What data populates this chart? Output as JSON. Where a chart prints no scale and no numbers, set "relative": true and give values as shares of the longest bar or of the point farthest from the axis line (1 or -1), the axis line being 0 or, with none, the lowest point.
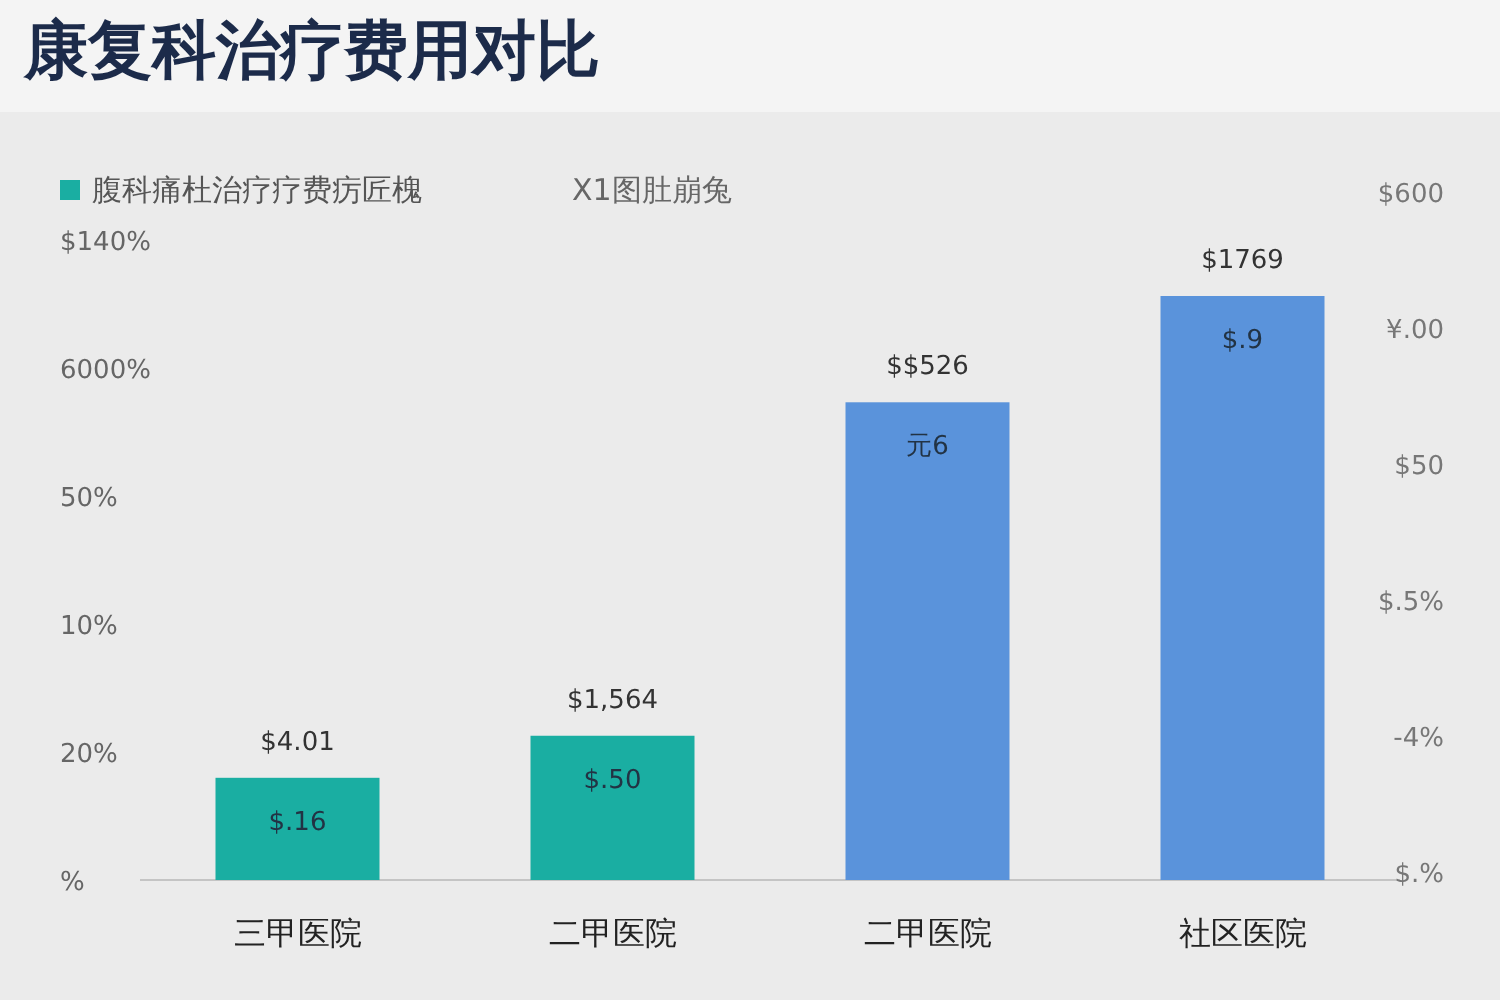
{
  "chart_data": {
    "type": "bar",
    "title": "康复科治疗费用对比",
    "relative": true,
    "legend": "top left",
    "categories": [
      "三甲医院",
      "二甲医院",
      "二甲医院",
      "社区医院"
    ],
    "series": [
      {
        "name": "腹科痛杜治疗疗费疠匠槐",
        "color": "#1aaea2",
        "values": [
          0.175,
          0.247,
          null,
          null
        ]
      },
      {
        "color": "#5a93db",
        "values": [
          null,
          null,
          0.818,
          1
        ]
      }
    ],
    "value_labels": [
      "$4.01",
      "$1,564",
      "$$526",
      "$1769"
    ],
    "annotations": [
      "$140%",
      "6000%",
      "50%",
      "10%",
      "20%",
      "%",
      "$600",
      "¥.00",
      "$50",
      "$.5%",
      "-4%",
      "$.%",
      "X1图肚崩兔",
      "$.16",
      "$.50",
      "元6",
      "$.9"
    ]
  }
}
